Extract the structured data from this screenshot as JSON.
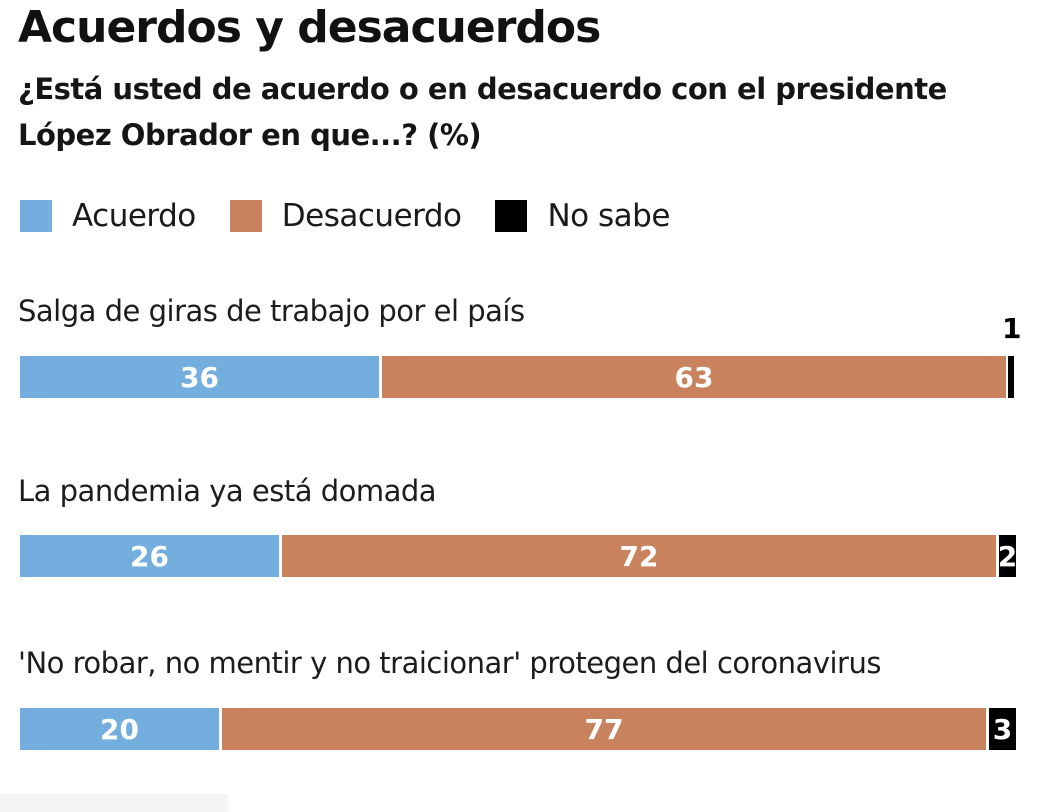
{
  "chart_data": {
    "type": "bar",
    "orientation": "horizontal",
    "stacked": true,
    "title": "Acuerdos y desacuerdos",
    "subtitle": "¿Está usted de acuerdo o en desacuerdo con el presidente López Obrador en que...? (%)",
    "xlabel": "",
    "ylabel": "",
    "xlim": [
      0,
      100
    ],
    "legend_position": "top-left",
    "legend": [
      {
        "name": "Acuerdo",
        "color": "#74aedf"
      },
      {
        "name": "Desacuerdo",
        "color": "#c8825e"
      },
      {
        "name": "No sabe",
        "color": "#000000"
      }
    ],
    "categories": [
      "Salga de giras de trabajo por el país",
      "La pandemia ya está domada",
      "'No robar, no mentir y no traicionar' protegen del coronavirus"
    ],
    "series": [
      {
        "name": "Acuerdo",
        "values": [
          36,
          26,
          20
        ]
      },
      {
        "name": "Desacuerdo",
        "values": [
          63,
          72,
          77
        ]
      },
      {
        "name": "No sabe",
        "values": [
          1,
          2,
          3
        ]
      }
    ]
  }
}
